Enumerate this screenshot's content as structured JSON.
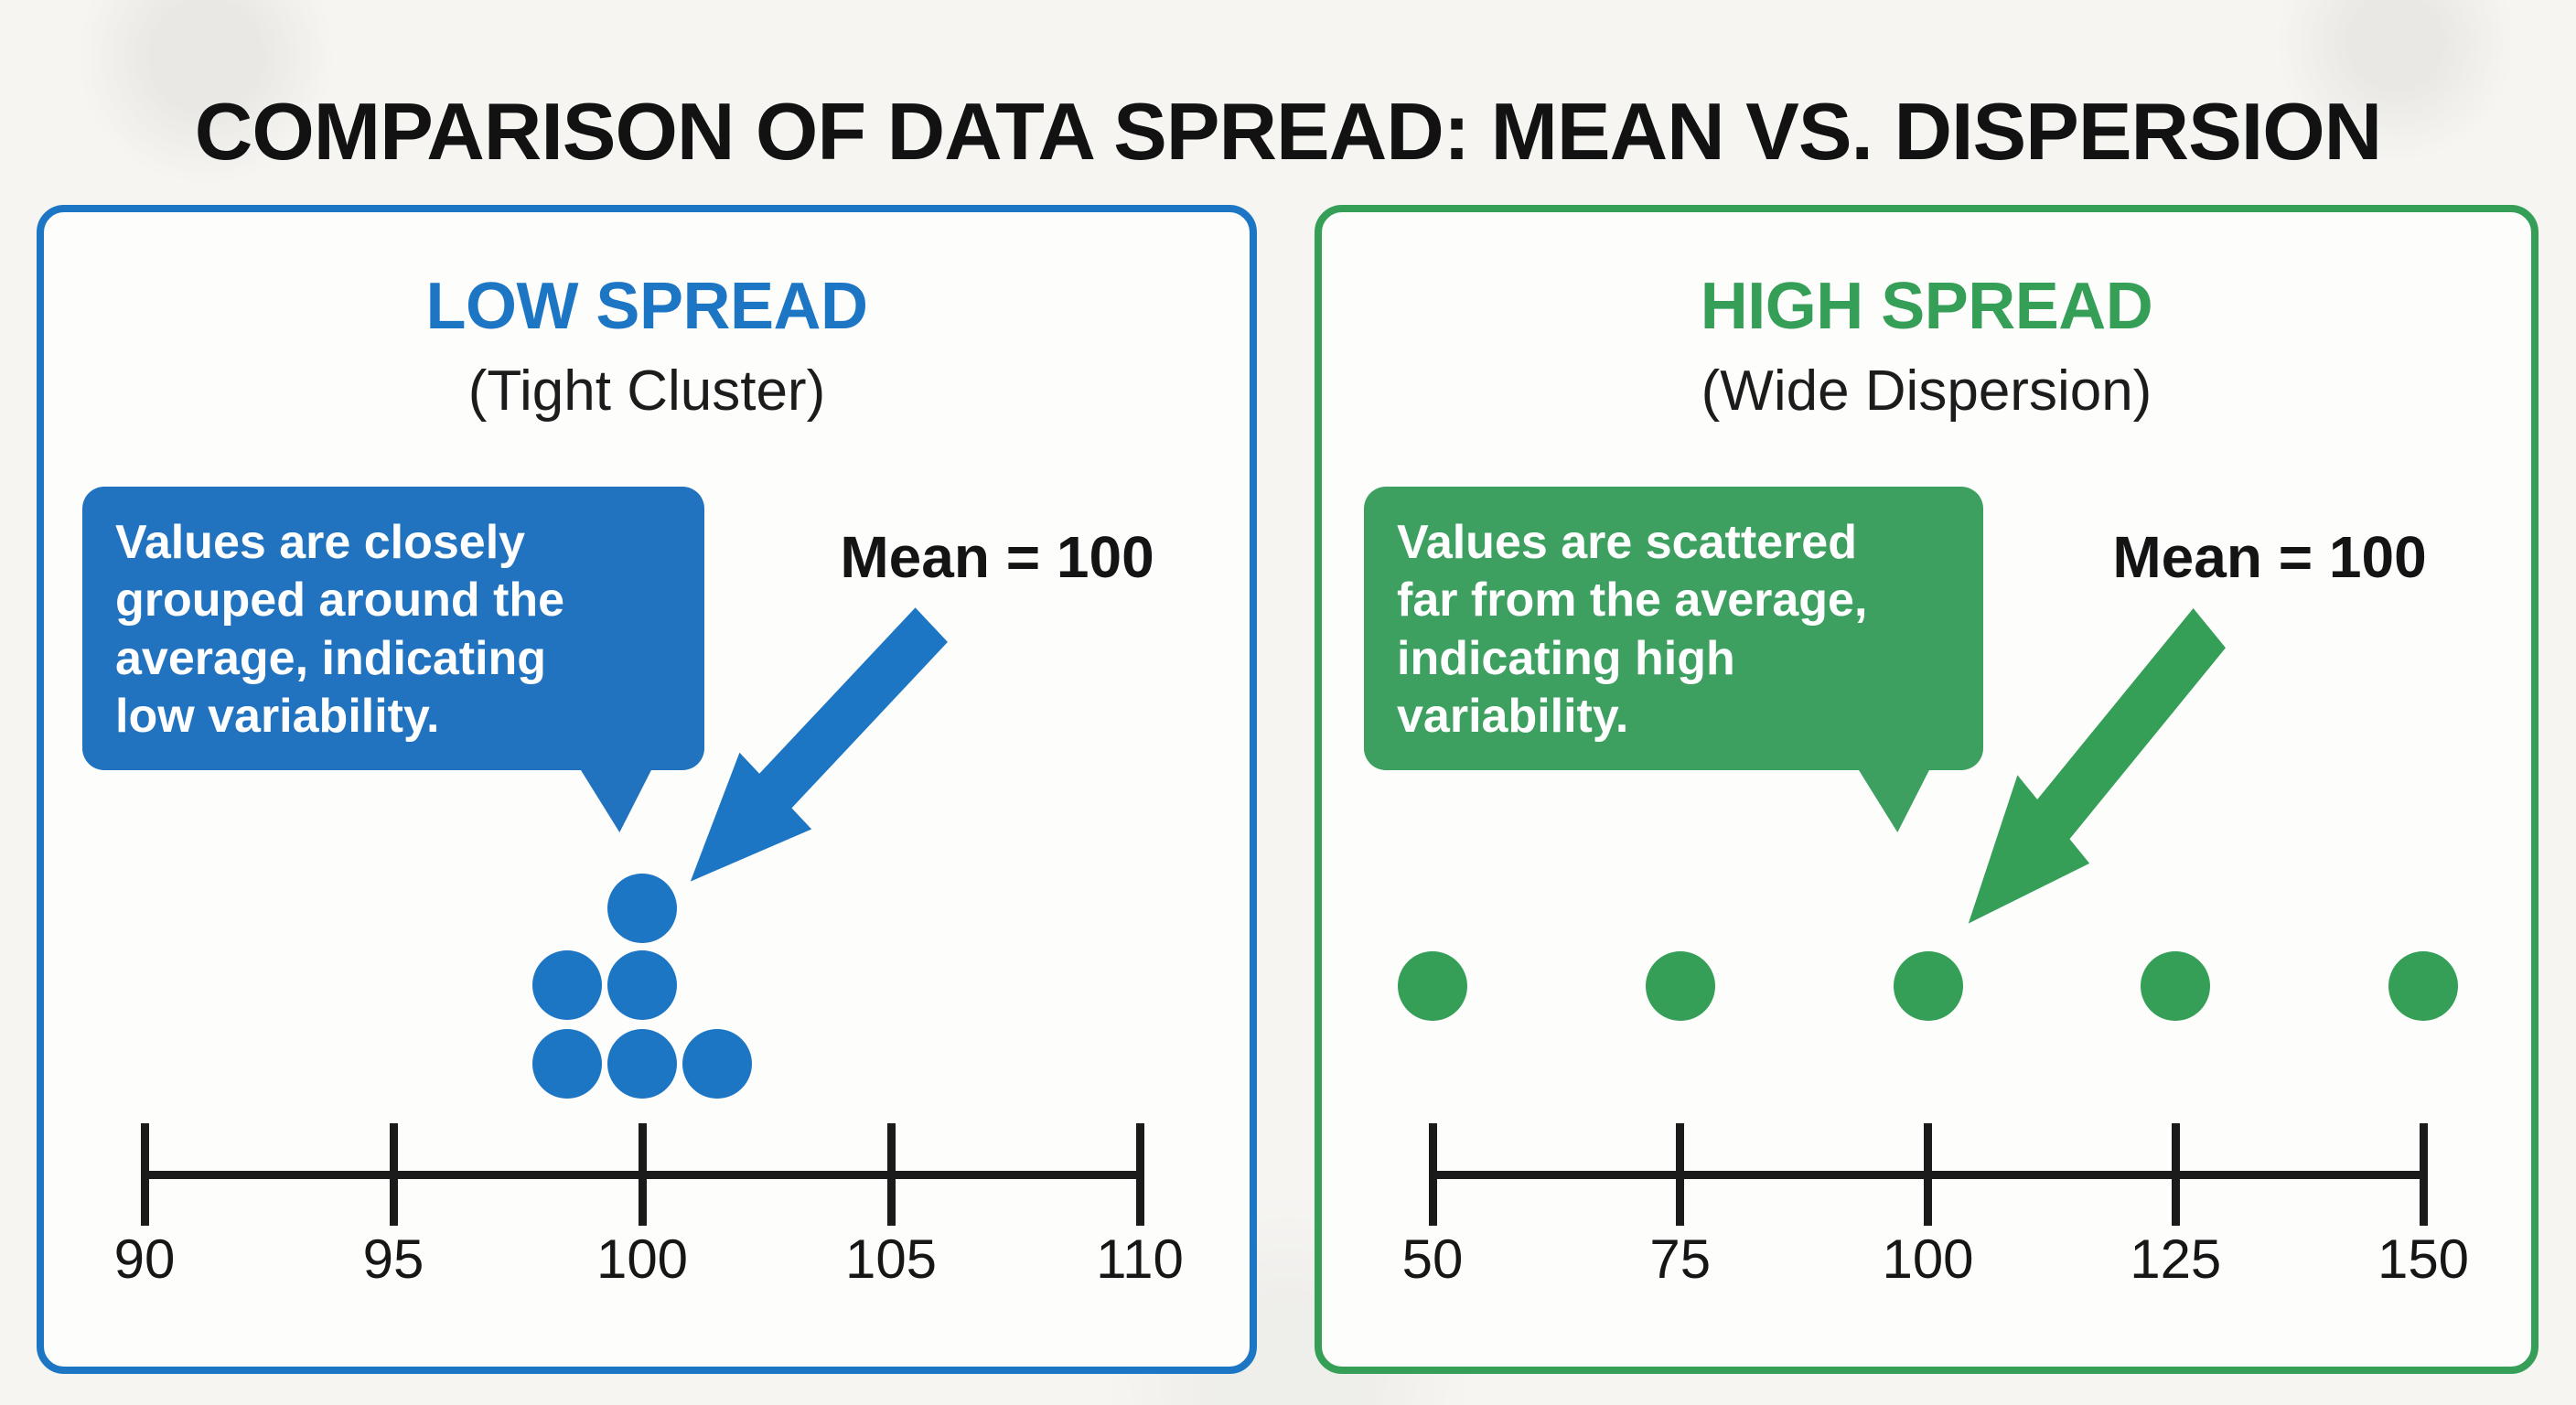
{
  "title": "COMPARISON OF DATA SPREAD: MEAN VS. DISPERSION",
  "colors": {
    "background": "#f6f5f2",
    "panel_background": "#fdfdfc",
    "blue_accent": "#1d76c4",
    "blue_bubble": "#2173bf",
    "green_accent": "#359f58",
    "green_bubble": "#3da061",
    "ink": "#181818",
    "bubble_text": "#ffffff"
  },
  "icons": {
    "left_arrow": "arrow-down-left",
    "right_arrow": "arrow-down-left"
  },
  "panels": [
    {
      "id": "low-spread",
      "title": "LOW SPREAD",
      "subtitle": "(Tight Cluster)",
      "callout": "Values are closely\ngrouped around the\naverage, indicating\nlow variability.",
      "mean_label": "Mean = 100",
      "axis": {
        "min": 90,
        "max": 110,
        "ticks": [
          "90",
          "95",
          "100",
          "105",
          "110"
        ]
      },
      "dots": [
        {
          "value": 100,
          "row": 0
        },
        {
          "value": 98.5,
          "row": 1
        },
        {
          "value": 100,
          "row": 1
        },
        {
          "value": 98.5,
          "row": 2
        },
        {
          "value": 100,
          "row": 2
        },
        {
          "value": 101.5,
          "row": 2
        }
      ]
    },
    {
      "id": "high-spread",
      "title": "HIGH SPREAD",
      "subtitle": "(Wide Dispersion)",
      "callout": "Values are scattered\nfar from the average,\nindicating high\nvariability.",
      "mean_label": "Mean = 100",
      "axis": {
        "min": 50,
        "max": 150,
        "ticks": [
          "50",
          "75",
          "100",
          "125",
          "150"
        ]
      },
      "dots": [
        {
          "value": 50,
          "row": 1
        },
        {
          "value": 75,
          "row": 1
        },
        {
          "value": 100,
          "row": 1
        },
        {
          "value": 125,
          "row": 1
        },
        {
          "value": 150,
          "row": 1
        }
      ]
    }
  ],
  "chart_data": [
    {
      "type": "scatter",
      "title": "LOW SPREAD (Tight Cluster)",
      "x": [
        100,
        98.5,
        100,
        98.5,
        100,
        101.5
      ],
      "mean": 100,
      "xlabel": "",
      "ylabel": "",
      "xlim": [
        90,
        110
      ],
      "xticks": [
        90,
        95,
        100,
        105,
        110
      ],
      "legend_position": "none",
      "grid": false
    },
    {
      "type": "scatter",
      "title": "HIGH SPREAD (Wide Dispersion)",
      "x": [
        50,
        75,
        100,
        125,
        150
      ],
      "mean": 100,
      "xlabel": "",
      "ylabel": "",
      "xlim": [
        50,
        150
      ],
      "xticks": [
        50,
        75,
        100,
        125,
        150
      ],
      "legend_position": "none",
      "grid": false
    }
  ]
}
